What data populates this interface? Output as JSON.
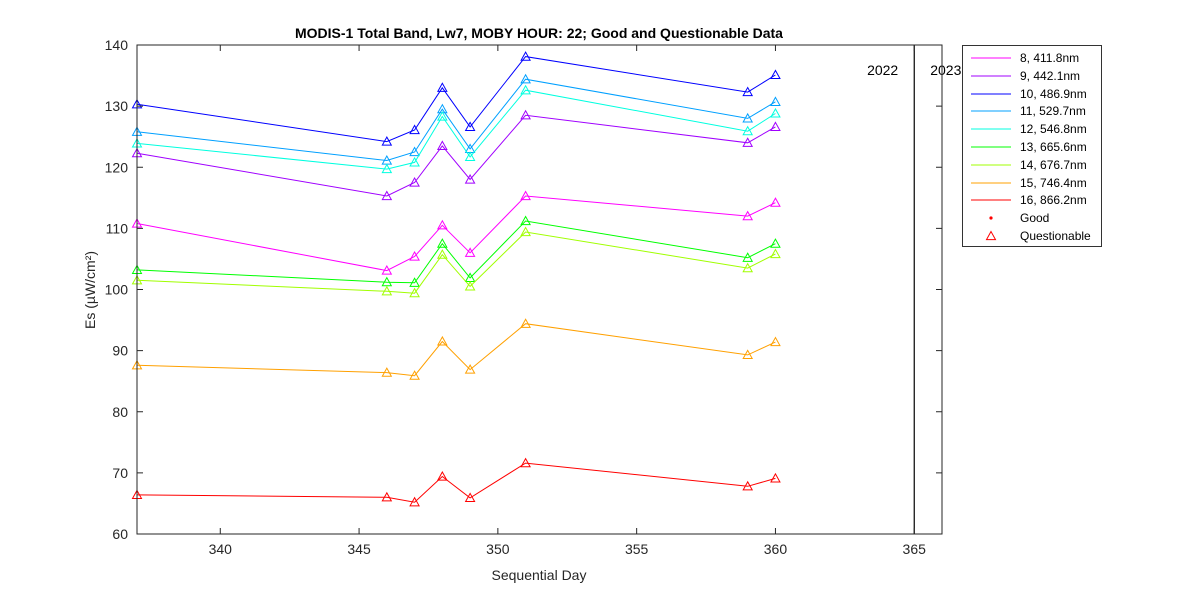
{
  "chart_data": {
    "type": "line",
    "title": "MODIS-1 Total Band,  Lw7, MOBY HOUR: 22;  Good and Questionable Data",
    "xlabel": "Sequential Day",
    "ylabel": "Es (µW/cm²)",
    "xlim": [
      337,
      366
    ],
    "ylim": [
      60,
      140
    ],
    "xticks": [
      340,
      345,
      350,
      355,
      360,
      365
    ],
    "yticks": [
      60,
      70,
      80,
      90,
      100,
      110,
      120,
      130,
      140
    ],
    "grid": false,
    "legend_position": "outside-right",
    "year_divider": {
      "x": 365,
      "labels": [
        "2022",
        "2023"
      ]
    },
    "x": [
      337,
      346,
      347,
      348,
      349,
      351,
      359,
      360
    ],
    "series": [
      {
        "name": "8, 411.8nm",
        "color": "#ff00ff",
        "marker": "triangle",
        "values": [
          110.8,
          103.1,
          105.4,
          110.5,
          106.0,
          115.3,
          112.0,
          114.2
        ]
      },
      {
        "name": "9, 442.1nm",
        "color": "#a000ff",
        "marker": "triangle",
        "values": [
          122.3,
          115.3,
          117.5,
          123.5,
          118.0,
          128.5,
          124.0,
          126.6
        ]
      },
      {
        "name": "10, 486.9nm",
        "color": "#0000ff",
        "marker": "triangle",
        "values": [
          130.3,
          124.2,
          126.1,
          133.0,
          126.6,
          138.1,
          132.3,
          135.1
        ]
      },
      {
        "name": "11, 529.7nm",
        "color": "#00a0ff",
        "marker": "triangle",
        "values": [
          125.8,
          121.1,
          122.5,
          129.5,
          123.0,
          134.4,
          128.0,
          130.7
        ]
      },
      {
        "name": "12, 546.8nm",
        "color": "#00ffe0",
        "marker": "triangle",
        "values": [
          123.9,
          119.7,
          120.8,
          128.3,
          121.7,
          132.6,
          125.9,
          128.8
        ]
      },
      {
        "name": "13, 665.6nm",
        "color": "#00ff00",
        "marker": "triangle",
        "values": [
          103.2,
          101.2,
          101.1,
          107.5,
          101.9,
          111.2,
          105.2,
          107.5
        ]
      },
      {
        "name": "14, 676.7nm",
        "color": "#a0ff00",
        "marker": "triangle",
        "values": [
          101.5,
          99.7,
          99.4,
          105.7,
          100.5,
          109.4,
          103.5,
          105.8
        ]
      },
      {
        "name": "15, 746.4nm",
        "color": "#ffa000",
        "marker": "triangle",
        "values": [
          87.6,
          86.4,
          85.9,
          91.5,
          86.9,
          94.4,
          89.3,
          91.4
        ]
      },
      {
        "name": "16, 866.2nm",
        "color": "#ff0000",
        "marker": "triangle",
        "values": [
          66.4,
          66.0,
          65.2,
          69.4,
          65.9,
          71.6,
          67.8,
          69.1
        ]
      }
    ],
    "marker_legend": [
      {
        "name": "Good",
        "marker": "dot",
        "color": "#ff0000"
      },
      {
        "name": "Questionable",
        "marker": "triangle",
        "color": "#ff0000"
      }
    ]
  }
}
